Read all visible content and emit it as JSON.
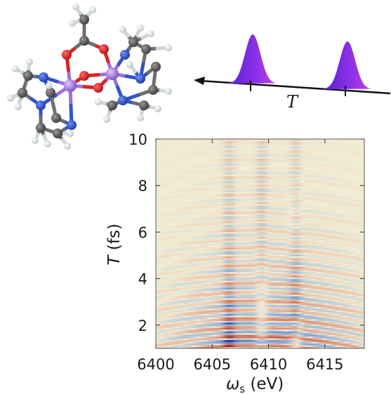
{
  "chart_data": {
    "type": "heatmap",
    "title": "",
    "xlabel": "ω",
    "xlabel_sub": "s",
    "xlabel_unit": " (eV)",
    "ylabel": "T",
    "ylabel_unit": " (fs)",
    "xlim": [
      6400,
      6418.5
    ],
    "ylim": [
      1,
      10
    ],
    "x_ticks": [
      6400,
      6405,
      6410,
      6415
    ],
    "y_ticks": [
      2,
      4,
      6,
      8,
      10
    ],
    "colormap": [
      "#1c2fa0",
      "#7fa6d8",
      "#f2ecd4",
      "#d9846b",
      "#9c1a14"
    ],
    "pattern": {
      "oscillation_period_fs": 0.38,
      "center_eV": 6410.0,
      "main_stripes_eV": [
        6406.5,
        6409.4,
        6412.4
      ],
      "amplitude_decay_fs": 2.6
    }
  },
  "inset": {
    "pulse_label": "T",
    "pulse_colors": [
      "#5a1fd0",
      "#c040e0"
    ],
    "molecule_colors": {
      "carbon": "#555555",
      "hydrogen": "#e8e8e8",
      "oxygen": "#dd2222",
      "nitrogen": "#2f55c8",
      "manganese": "#a070d8"
    }
  }
}
